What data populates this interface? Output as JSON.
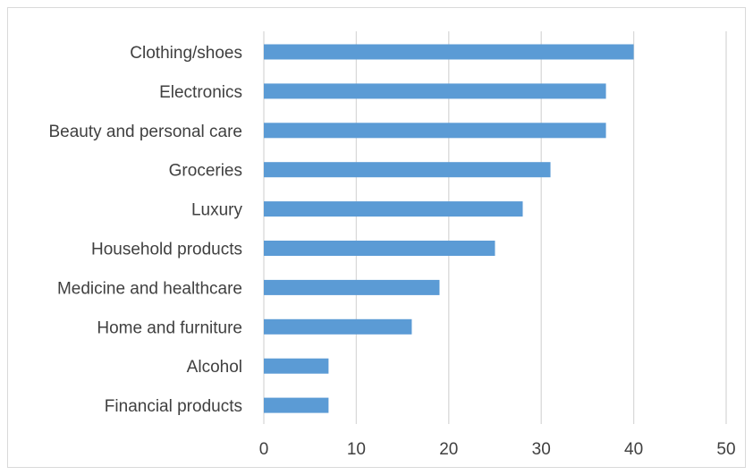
{
  "chart_data": {
    "type": "bar",
    "orientation": "horizontal",
    "title": "",
    "xlabel": "",
    "ylabel": "",
    "categories": [
      "Clothing/shoes",
      "Electronics",
      "Beauty and personal care",
      "Groceries",
      "Luxury",
      "Household products",
      "Medicine and healthcare",
      "Home and furniture",
      "Alcohol",
      "Financial products"
    ],
    "values": [
      40,
      37,
      37,
      31,
      28,
      25,
      19,
      16,
      7,
      7
    ],
    "xlim": [
      0,
      50
    ],
    "xticks": [
      0,
      10,
      20,
      30,
      40,
      50
    ],
    "grid": "vertical",
    "legend": "none",
    "bar_color": "#5b9bd5",
    "grid_color": "#d9d9d9",
    "text_color": "#404040"
  }
}
